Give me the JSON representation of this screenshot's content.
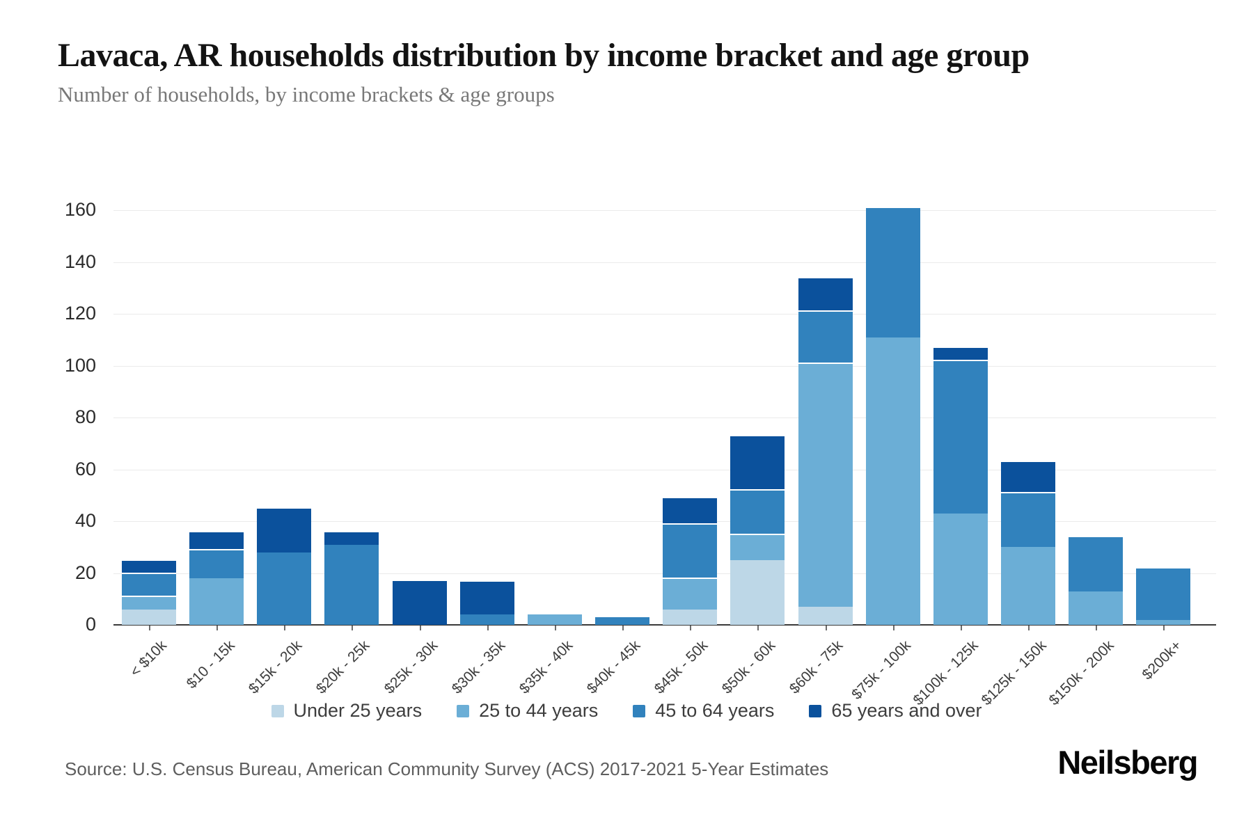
{
  "header": {
    "title": "Lavaca, AR households distribution by income bracket and age group",
    "subtitle": "Number of households, by income brackets & age groups"
  },
  "chart_data": {
    "type": "bar",
    "stacked": true,
    "title": "Lavaca, AR households distribution by income bracket and age group",
    "subtitle": "Number of households, by income brackets & age groups",
    "categories": [
      "< $10k",
      "$10 - 15k",
      "$15k - 20k",
      "$20k - 25k",
      "$25k - 30k",
      "$30k - 35k",
      "$35k - 40k",
      "$40k - 45k",
      "$45k - 50k",
      "$50k - 60k",
      "$60k - 75k",
      "$75k - 100k",
      "$100k - 125k",
      "$125k - 150k",
      "$150k - 200k",
      "$200k+"
    ],
    "series": [
      {
        "name": "Under 25 years",
        "color": "#bdd7e7",
        "values": [
          6,
          0,
          0,
          0,
          0,
          0,
          0,
          0,
          6,
          25,
          7,
          0,
          0,
          0,
          0,
          0
        ]
      },
      {
        "name": "25 to 44 years",
        "color": "#6baed6",
        "values": [
          5,
          18,
          0,
          0,
          0,
          0,
          4,
          0,
          12,
          10,
          94,
          111,
          43,
          30,
          13,
          2
        ]
      },
      {
        "name": "45 to 64 years",
        "color": "#3182bd",
        "values": [
          9,
          11,
          28,
          31,
          0,
          4,
          0,
          3,
          21,
          17,
          20,
          50,
          59,
          21,
          21,
          20
        ]
      },
      {
        "name": "65 years and over",
        "color": "#0b519c",
        "values": [
          5,
          7,
          17,
          5,
          17,
          13,
          0,
          0,
          10,
          21,
          13,
          0,
          5,
          12,
          0,
          0
        ]
      }
    ],
    "totals": [
      25,
      36,
      45,
      36,
      17,
      17,
      4,
      3,
      49,
      73,
      134,
      161,
      107,
      63,
      34,
      22
    ],
    "ylim": [
      0,
      160
    ],
    "yticks": [
      0,
      20,
      40,
      60,
      80,
      100,
      120,
      140,
      160
    ],
    "grid": "horizontal",
    "legend_position": "bottom"
  },
  "footer": {
    "source": "Source: U.S. Census Bureau, American Community Survey (ACS) 2017-2021 5-Year Estimates",
    "brand": "Neilsberg"
  }
}
